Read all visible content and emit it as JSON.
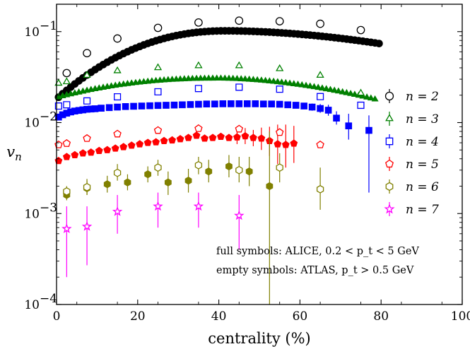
{
  "chart_data": {
    "type": "scatter",
    "title": "",
    "xlabel": "centrality (%)",
    "ylabel": "v_n",
    "xlim": [
      0,
      100
    ],
    "ylim": [
      0.0001,
      0.2
    ],
    "yscale": "log",
    "x_ticks": [
      0,
      20,
      40,
      60,
      80,
      100
    ],
    "y_ticks": [
      {
        "value": 0.1,
        "label": "10",
        "exp": "−1"
      },
      {
        "value": 0.01,
        "label": "10",
        "exp": "−2"
      },
      {
        "value": 0.001,
        "label": "10",
        "exp": "−3"
      },
      {
        "value": 0.0001,
        "label": "10",
        "exp": "−4"
      }
    ],
    "legend_position": "right",
    "annotations": [
      "full symbols: ALICE, 0.2 < p_t < 5 GeV",
      "empty symbols: ATLAS, p_t > 0.5 GeV"
    ],
    "series": [
      {
        "name": "n = 2",
        "n": 2,
        "marker": "circle",
        "color": "#000000",
        "alice_dense": {
          "x_start": 0.5,
          "x_end": 79.5,
          "x_step": 1,
          "peak": 0.102,
          "peak_x": 42,
          "start": 0.019,
          "end": 0.074
        },
        "atlas": [
          [
            2.5,
            0.035
          ],
          [
            7.5,
            0.058
          ],
          [
            15,
            0.084
          ],
          [
            25,
            0.11
          ],
          [
            35,
            0.126
          ],
          [
            45,
            0.132
          ],
          [
            55,
            0.13
          ],
          [
            65,
            0.122
          ],
          [
            75,
            0.104
          ]
        ]
      },
      {
        "name": "n = 3",
        "n": 3,
        "marker": "triangle",
        "color": "#008000",
        "alice_dense": {
          "x_start": 0.5,
          "x_end": 78.5,
          "x_step": 1,
          "peak": 0.0305,
          "peak_x": 40,
          "start": 0.019,
          "end": 0.018
        },
        "atlas": [
          [
            0.5,
            0.027
          ],
          [
            2.5,
            0.028
          ],
          [
            7.5,
            0.033
          ],
          [
            15,
            0.037
          ],
          [
            25,
            0.04
          ],
          [
            35,
            0.042
          ],
          [
            45,
            0.042
          ],
          [
            55,
            0.039
          ],
          [
            65,
            0.033
          ],
          [
            75,
            0.021
          ]
        ]
      },
      {
        "name": "n = 4",
        "n": 4,
        "marker": "square",
        "color": "#0000ff",
        "alice": [
          [
            0.5,
            0.0115
          ],
          [
            1.5,
            0.0122
          ],
          [
            2.5,
            0.0127
          ],
          [
            3.5,
            0.0131
          ],
          [
            4.5,
            0.0134
          ],
          [
            5.5,
            0.0136
          ],
          [
            6.5,
            0.0138
          ],
          [
            7.5,
            0.014
          ],
          [
            8.5,
            0.0141
          ],
          [
            9.5,
            0.0142
          ],
          [
            11,
            0.0144
          ],
          [
            13,
            0.0146
          ],
          [
            15,
            0.0148
          ],
          [
            17,
            0.015
          ],
          [
            19,
            0.0151
          ],
          [
            21,
            0.0152
          ],
          [
            23,
            0.0153
          ],
          [
            25,
            0.0154
          ],
          [
            27,
            0.0155
          ],
          [
            29,
            0.0156
          ],
          [
            31,
            0.0157
          ],
          [
            33,
            0.0158
          ],
          [
            35,
            0.0159
          ],
          [
            37,
            0.016
          ],
          [
            39,
            0.016
          ],
          [
            41,
            0.0161
          ],
          [
            43,
            0.0161
          ],
          [
            45,
            0.0161
          ],
          [
            47,
            0.0161
          ],
          [
            49,
            0.0161
          ],
          [
            51,
            0.016
          ],
          [
            53,
            0.016
          ],
          [
            55,
            0.0159
          ],
          [
            57,
            0.0157
          ],
          [
            59,
            0.0155
          ],
          [
            61,
            0.0152
          ],
          [
            63,
            0.0148
          ],
          [
            65,
            0.0143
          ],
          [
            67,
            0.0137
          ],
          [
            69,
            0.0112
          ],
          [
            72,
            0.0092
          ],
          [
            77,
            0.0082
          ]
        ],
        "alice_errors": [
          [
            63,
            0.0135,
            0.0162
          ],
          [
            65,
            0.0128,
            0.016
          ],
          [
            67,
            0.0119,
            0.0157
          ],
          [
            69,
            0.0095,
            0.0133
          ],
          [
            72,
            0.0065,
            0.0125
          ],
          [
            77,
            0.0017,
            0.012
          ]
        ],
        "atlas": [
          [
            0.5,
            0.0152
          ],
          [
            2.5,
            0.0157
          ],
          [
            7.5,
            0.0173
          ],
          [
            15,
            0.0192
          ],
          [
            25,
            0.0218
          ],
          [
            35,
            0.0237
          ],
          [
            45,
            0.0245
          ],
          [
            55,
            0.0233
          ],
          [
            65,
            0.0193
          ],
          [
            75,
            0.0155
          ]
        ]
      },
      {
        "name": "n = 5",
        "n": 5,
        "marker": "pentagon",
        "color": "#ff0000",
        "alice": [
          [
            0.5,
            0.0038
          ],
          [
            2.5,
            0.0042
          ],
          [
            4.5,
            0.0044
          ],
          [
            6.5,
            0.0046
          ],
          [
            8.5,
            0.0047
          ],
          [
            10.5,
            0.0049
          ],
          [
            12.5,
            0.005
          ],
          [
            14.5,
            0.0052
          ],
          [
            16.5,
            0.0054
          ],
          [
            18.5,
            0.0056
          ],
          [
            20.5,
            0.0058
          ],
          [
            22.5,
            0.006
          ],
          [
            24.5,
            0.0061
          ],
          [
            26.5,
            0.0063
          ],
          [
            28.5,
            0.0064
          ],
          [
            30.5,
            0.0066
          ],
          [
            32.5,
            0.0068
          ],
          [
            34.5,
            0.0072
          ],
          [
            36.5,
            0.0067
          ],
          [
            38.5,
            0.0068
          ],
          [
            40.5,
            0.007
          ],
          [
            42.5,
            0.0068
          ],
          [
            44.5,
            0.0069
          ],
          [
            46.5,
            0.0071
          ],
          [
            48.5,
            0.0068
          ],
          [
            50.5,
            0.0067
          ],
          [
            52.5,
            0.0063
          ],
          [
            54.5,
            0.0058
          ],
          [
            56.5,
            0.0057
          ],
          [
            58.5,
            0.0059
          ]
        ],
        "alice_errors": [
          [
            44.5,
            0.0058,
            0.0082
          ],
          [
            46.5,
            0.0058,
            0.0087
          ],
          [
            48.5,
            0.0055,
            0.0083
          ],
          [
            50.5,
            0.005,
            0.0088
          ],
          [
            52.5,
            0.0043,
            0.009
          ],
          [
            54.5,
            0.0035,
            0.0095
          ],
          [
            56.5,
            0.0032,
            0.0095
          ],
          [
            58.5,
            0.0036,
            0.0092
          ]
        ],
        "atlas": [
          [
            0.5,
            0.0057
          ],
          [
            2.5,
            0.0059
          ],
          [
            7.5,
            0.0067
          ],
          [
            15,
            0.0075
          ],
          [
            25,
            0.0082
          ],
          [
            35,
            0.0086
          ],
          [
            45,
            0.0085
          ],
          [
            55,
            0.0078
          ],
          [
            65,
            0.0057
          ]
        ]
      },
      {
        "name": "n = 6",
        "n": 6,
        "marker": "hexagon",
        "color": "#808000",
        "alice": [
          [
            2.5,
            0.0016
          ],
          [
            7.5,
            0.0019
          ],
          [
            12.5,
            0.0021
          ],
          [
            17.5,
            0.0022
          ],
          [
            22.5,
            0.0027
          ],
          [
            27.5,
            0.0022
          ],
          [
            32.5,
            0.0023
          ],
          [
            37.5,
            0.0029
          ],
          [
            42.5,
            0.0033
          ],
          [
            47.5,
            0.0029
          ],
          [
            52.5,
            0.002
          ]
        ],
        "alice_errors": [
          [
            2.5,
            0.0014,
            0.0019
          ],
          [
            7.5,
            0.0016,
            0.0023
          ],
          [
            12.5,
            0.0017,
            0.0026
          ],
          [
            17.5,
            0.0018,
            0.0027
          ],
          [
            22.5,
            0.0022,
            0.0033
          ],
          [
            27.5,
            0.0016,
            0.0029
          ],
          [
            32.5,
            0.0017,
            0.0031
          ],
          [
            37.5,
            0.0022,
            0.0039
          ],
          [
            42.5,
            0.0025,
            0.0044
          ],
          [
            47.5,
            0.002,
            0.0042
          ],
          [
            52.5,
            0.0001,
            0.008
          ]
        ],
        "atlas": [
          [
            2.5,
            0.00175
          ],
          [
            7.5,
            0.00195
          ],
          [
            15,
            0.0028
          ],
          [
            25,
            0.0032
          ],
          [
            35,
            0.0034
          ],
          [
            45,
            0.003
          ],
          [
            55,
            0.0032
          ],
          [
            65,
            0.00185
          ]
        ],
        "atlas_errors": [
          [
            2.5,
            0.0015,
            0.002
          ],
          [
            7.5,
            0.0016,
            0.0024
          ],
          [
            15,
            0.0023,
            0.0035
          ],
          [
            25,
            0.0026,
            0.0039
          ],
          [
            35,
            0.0027,
            0.0042
          ],
          [
            45,
            0.0022,
            0.0042
          ],
          [
            55,
            0.0022,
            0.0046
          ],
          [
            65,
            0.0011,
            0.0032
          ]
        ]
      },
      {
        "name": "n = 7",
        "n": 7,
        "marker": "star",
        "color": "#ff00ff",
        "atlas": [
          [
            2.5,
            0.00068
          ],
          [
            7.5,
            0.00072
          ],
          [
            15,
            0.00105
          ],
          [
            25,
            0.0012
          ],
          [
            35,
            0.0012
          ],
          [
            45,
            0.00095
          ]
        ],
        "atlas_errors": [
          [
            2.5,
            0.0002,
            0.0012
          ],
          [
            7.5,
            0.00027,
            0.0012
          ],
          [
            15,
            0.0006,
            0.0016
          ],
          [
            25,
            0.0007,
            0.0017
          ],
          [
            35,
            0.0007,
            0.0017
          ],
          [
            45,
            0.0004,
            0.0016
          ]
        ]
      }
    ]
  }
}
